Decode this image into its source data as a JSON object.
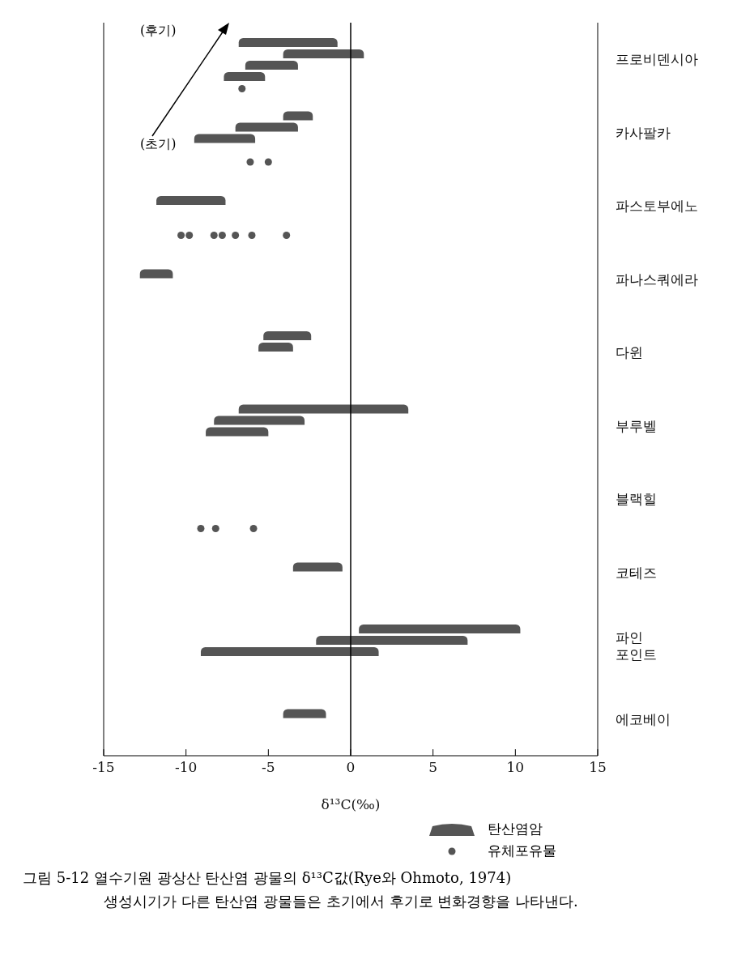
{
  "chart_data": {
    "type": "bar",
    "orientation": "horizontal",
    "xlabel": "δ¹³C(‰)",
    "categories": [
      "프로비덴시아",
      "카사팔카",
      "파스토부에노",
      "파나스쿼에라",
      "다윈",
      "부루벨",
      "블랙힐",
      "코테즈",
      "파인\n포인트",
      "에코베이"
    ],
    "series": [
      {
        "name": "탄산염암",
        "color": "#555555",
        "base": [
          -6.8,
          -4.1,
          null,
          null,
          -5.3,
          -6.8,
          null,
          null,
          0.5,
          null
        ],
        "values": [
          6.0,
          1.8,
          null,
          null,
          2.9,
          10.3,
          null,
          null,
          9.8,
          null
        ]
      },
      {
        "color": "#555555",
        "base": [
          -4.1,
          -7.0,
          -11.8,
          -12.8,
          -5.6,
          -8.3,
          null,
          -3.5,
          -2.1,
          -4.1
        ],
        "values": [
          4.9,
          3.8,
          4.2,
          2.0,
          2.1,
          5.5,
          null,
          3.0,
          9.2,
          2.6
        ]
      },
      {
        "color": "#555555",
        "base": [
          -6.4,
          -9.5,
          null,
          null,
          null,
          -8.8,
          null,
          null,
          -9.1,
          null
        ],
        "values": [
          3.2,
          3.7,
          null,
          null,
          null,
          3.8,
          null,
          null,
          10.8,
          null
        ]
      },
      {
        "color": "#555555",
        "base": [
          -7.7,
          null,
          null,
          null,
          null,
          null,
          null,
          null,
          null,
          null
        ],
        "values": [
          2.5,
          null,
          null,
          null,
          null,
          null,
          null,
          null,
          null,
          null
        ]
      },
      {
        "name": "유체포유물",
        "type": "scatter",
        "color": "#555555",
        "marker": "circle",
        "x": [
          "프로비덴시아",
          "카사팔카",
          "카사팔카",
          "파스토부에노",
          "파스토부에노",
          "파스토부에노",
          "파스토부에노",
          "파스토부에노",
          "파스토부에노",
          "파스토부에노",
          "블랙힐",
          "블랙힐",
          "블랙힐"
        ],
        "values": [
          -6.6,
          -6.1,
          -5.0,
          -10.3,
          -9.8,
          -8.3,
          -7.8,
          -7.0,
          -6.0,
          -3.9,
          -9.1,
          -8.2,
          -5.9
        ]
      }
    ],
    "xlim": [
      -15,
      15
    ],
    "xticks": [
      -15,
      -10,
      -5,
      0,
      5,
      10,
      15
    ],
    "ref_lines": [
      {
        "axis": "x",
        "value": 0,
        "color": "#000000"
      }
    ],
    "legend": "bottom",
    "annotations": [
      "(후기)",
      "(초기)",
      "그림 5-12  열수기원 광상산 탄산염 광물의 δ¹³C값(Rye와 Ohmoto, 1974)",
      "생성시기가 다른 탄산염 광물들은 초기에서 후기로 변화경향을 나타낸다."
    ]
  }
}
